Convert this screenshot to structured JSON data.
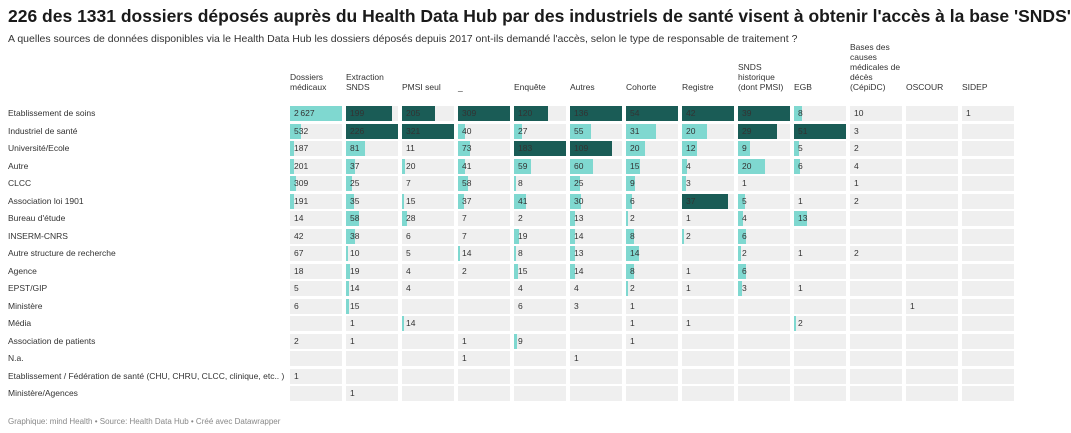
{
  "title": "226 des 1331 dossiers déposés auprès du Health Data Hub par des industriels de santé visent à obtenir l'accès à la base 'SNDS'",
  "subtitle": "A quelles sources de données disponibles via le Health Data Hub les dossiers déposés depuis 2017 ont-ils demandé l'accès, selon le type de responsable de traitement ?",
  "footer": "Graphique: mind Health • Source: Health Data Hub • Créé avec Datawrapper",
  "colors": {
    "bar_light": "#7fd8d0",
    "bar_dark": "#1a5c56",
    "cell_bg": "#efefef"
  },
  "chart_data": {
    "type": "table",
    "columns": [
      "Dossiers médicaux",
      "Extraction SNDS",
      "PMSI seul",
      "_",
      "Enquête",
      "Autres",
      "Cohorte",
      "Registre",
      "SNDS historique (dont PMSI)",
      "EGB",
      "Bases des causes médicales de décès (CépiDC)",
      "OSCOUR",
      "SIDEP"
    ],
    "column_max": [
      2627,
      226,
      321,
      309,
      183,
      136,
      54,
      42,
      39,
      51,
      10,
      1,
      1
    ],
    "rows": [
      {
        "label": "Etablissement de soins",
        "values": [
          2627,
          199,
          205,
          309,
          120,
          136,
          54,
          42,
          39,
          8,
          10,
          null,
          1
        ]
      },
      {
        "label": "Industriel de santé",
        "values": [
          532,
          226,
          321,
          40,
          27,
          55,
          31,
          20,
          29,
          51,
          3,
          null,
          null
        ]
      },
      {
        "label": "Université/Ecole",
        "values": [
          187,
          81,
          11,
          73,
          183,
          109,
          20,
          12,
          9,
          5,
          2,
          null,
          null
        ]
      },
      {
        "label": "Autre",
        "values": [
          201,
          37,
          20,
          41,
          59,
          60,
          15,
          4,
          20,
          6,
          4,
          null,
          null
        ]
      },
      {
        "label": "CLCC",
        "values": [
          309,
          25,
          7,
          58,
          8,
          25,
          9,
          3,
          1,
          null,
          1,
          null,
          null
        ]
      },
      {
        "label": "Association loi 1901",
        "values": [
          191,
          35,
          15,
          37,
          41,
          30,
          6,
          37,
          5,
          1,
          2,
          null,
          null
        ]
      },
      {
        "label": "Bureau d'étude",
        "values": [
          14,
          58,
          28,
          7,
          2,
          13,
          2,
          1,
          4,
          13,
          null,
          null,
          null
        ]
      },
      {
        "label": "INSERM-CNRS",
        "values": [
          42,
          38,
          6,
          7,
          19,
          14,
          8,
          2,
          6,
          null,
          null,
          null,
          null
        ]
      },
      {
        "label": "Autre structure de recherche",
        "values": [
          67,
          10,
          5,
          14,
          8,
          13,
          14,
          null,
          2,
          1,
          2,
          null,
          null
        ]
      },
      {
        "label": "Agence",
        "values": [
          18,
          19,
          4,
          2,
          15,
          14,
          8,
          1,
          6,
          null,
          null,
          null,
          null
        ]
      },
      {
        "label": "EPST/GIP",
        "values": [
          5,
          14,
          4,
          null,
          4,
          4,
          2,
          1,
          3,
          1,
          null,
          null,
          null
        ]
      },
      {
        "label": "Ministère",
        "values": [
          6,
          15,
          null,
          null,
          6,
          3,
          1,
          null,
          null,
          null,
          null,
          1,
          null
        ]
      },
      {
        "label": "Média",
        "values": [
          null,
          1,
          14,
          null,
          null,
          null,
          1,
          1,
          null,
          2,
          null,
          null,
          null
        ]
      },
      {
        "label": "Association de patients",
        "values": [
          2,
          1,
          null,
          1,
          9,
          null,
          1,
          null,
          null,
          null,
          null,
          null,
          null
        ]
      },
      {
        "label": "N.a.",
        "values": [
          null,
          null,
          null,
          1,
          null,
          1,
          null,
          null,
          null,
          null,
          null,
          null,
          null
        ]
      },
      {
        "label": "Etablissement / Fédération de santé (CHU, CHRU, CLCC, clinique, etc.. )",
        "values": [
          1,
          null,
          null,
          null,
          null,
          null,
          null,
          null,
          null,
          null,
          null,
          null,
          null
        ]
      },
      {
        "label": "Ministère/Agences",
        "values": [
          null,
          1,
          null,
          null,
          null,
          null,
          null,
          null,
          null,
          null,
          null,
          null,
          null
        ]
      }
    ]
  }
}
